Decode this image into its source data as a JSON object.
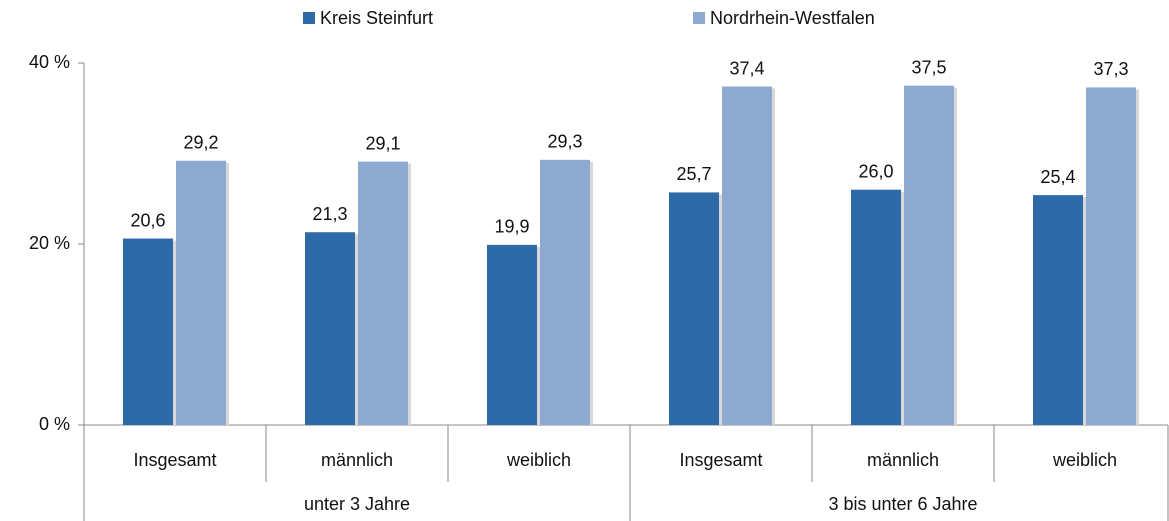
{
  "chart_data": {
    "type": "bar",
    "groups": [
      {
        "label": "unter 3 Jahre",
        "categories": [
          "Insgesamt",
          "männlich",
          "weiblich"
        ]
      },
      {
        "label": "3 bis unter 6 Jahre",
        "categories": [
          "Insgesamt",
          "männlich",
          "weiblich"
        ]
      }
    ],
    "series": [
      {
        "name": "Kreis Steinfurt",
        "color": "#2e6aa8",
        "values": [
          20.6,
          21.3,
          19.9,
          25.7,
          26.0,
          25.4
        ],
        "value_labels": [
          "20,6",
          "21,3",
          "19,9",
          "25,7",
          "26,0",
          "25,4"
        ]
      },
      {
        "name": "Nordrhein-Westfalen",
        "color": "#8ea9d0",
        "values": [
          29.2,
          29.1,
          29.3,
          37.4,
          37.5,
          37.3
        ],
        "value_labels": [
          "29,2",
          "29,1",
          "29,3",
          "37,4",
          "37,5",
          "37,3"
        ]
      }
    ],
    "ylim": [
      0,
      40
    ],
    "yticks": [
      {
        "value": 0,
        "label": "0 %"
      },
      {
        "value": 20,
        "label": "20 %"
      },
      {
        "value": 40,
        "label": "40 %"
      }
    ],
    "legend": "top"
  }
}
